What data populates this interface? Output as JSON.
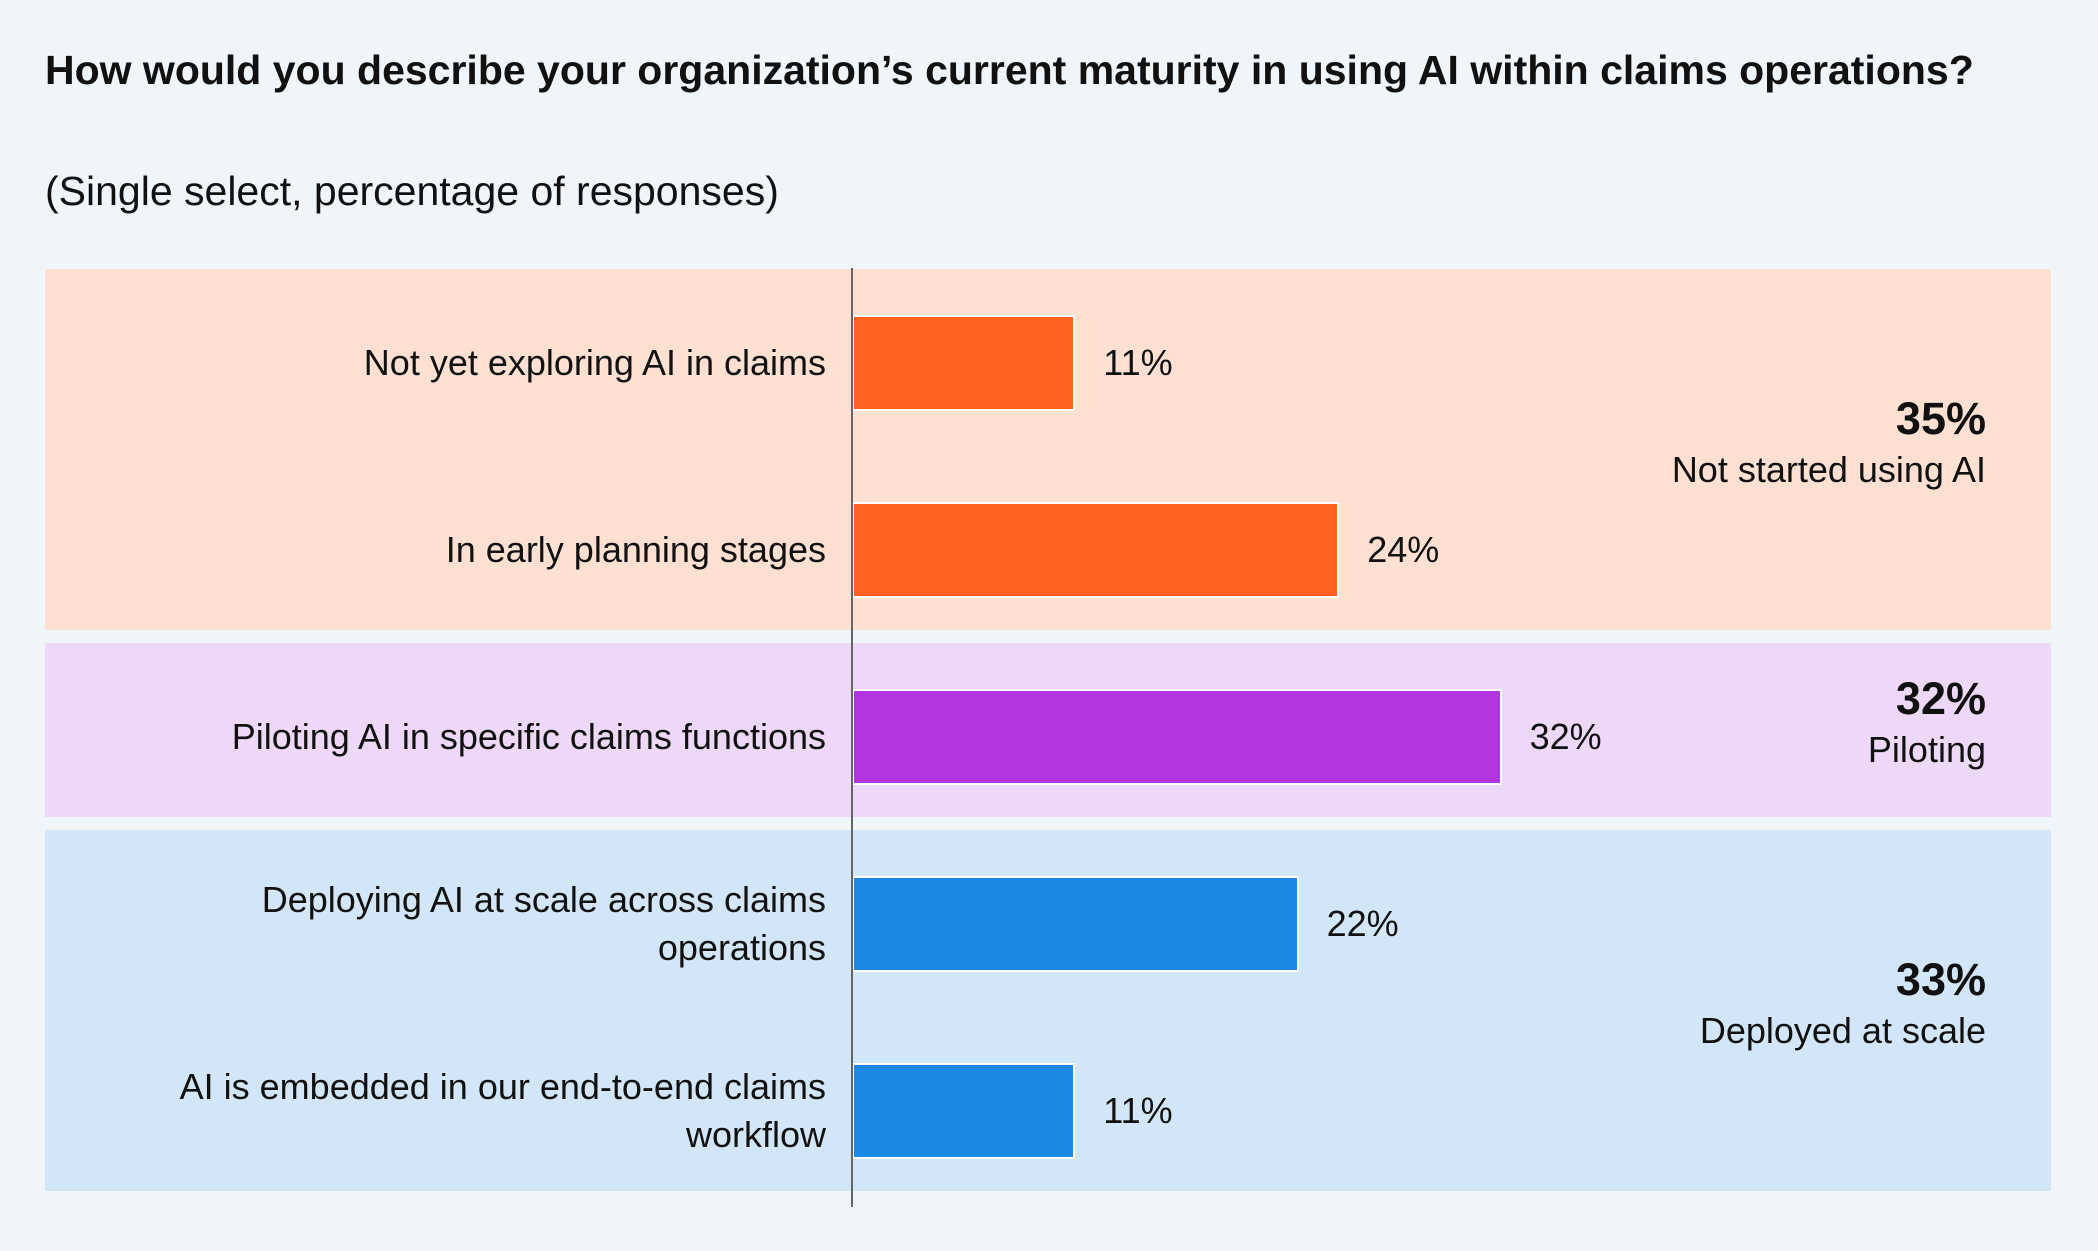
{
  "chart_data": {
    "type": "bar",
    "title": "How would you describe your organization’s current maturity in using AI within claims operations?",
    "subtitle": "(Single select, percentage of responses)",
    "series": [
      {
        "name": "Not started using AI",
        "total": 35,
        "total_label": "35%",
        "color": "#ff6220",
        "background": "#fde0d2",
        "categories": [
          "Not yet exploring AI in claims",
          "In early planning stages"
        ],
        "values": [
          11,
          24
        ],
        "value_labels": [
          "11%",
          "24%"
        ]
      },
      {
        "name": "Piloting",
        "total": 32,
        "total_label": "32%",
        "color": "#b236e0",
        "background": "#eed8f7",
        "categories": [
          "Piloting AI in specific claims functions"
        ],
        "values": [
          32
        ],
        "value_labels": [
          "32%"
        ]
      },
      {
        "name": "Deployed at scale",
        "total": 33,
        "total_label": "33%",
        "color": "#1e88e5",
        "background": "#d3e6f8",
        "categories": [
          "Deploying AI at scale across claims operations",
          "AI is embedded in our end-to-end claims workflow"
        ],
        "values": [
          22,
          11
        ],
        "value_labels": [
          "22%",
          "11%"
        ]
      }
    ]
  }
}
